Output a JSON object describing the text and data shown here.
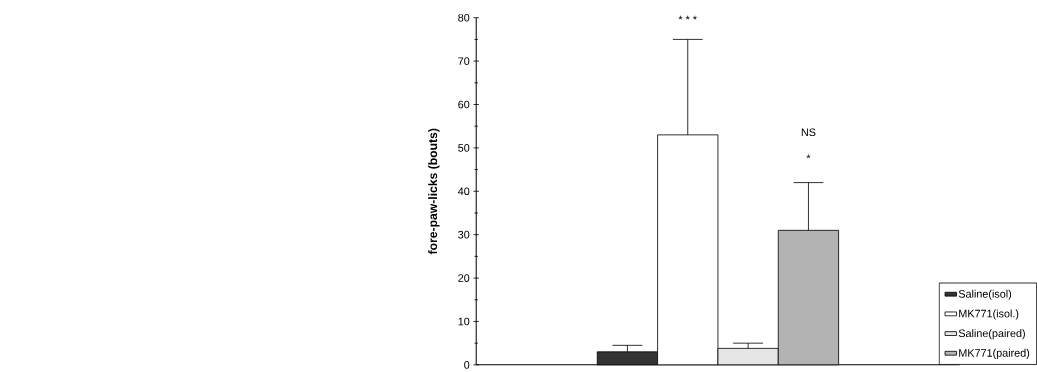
{
  "chart_data": {
    "type": "bar",
    "categories": [
      null
    ],
    "series": [
      {
        "name": "Saline(isol)",
        "color": "#333333",
        "values": [
          3
        ],
        "errors": [
          1.5
        ]
      },
      {
        "name": "MK771(isol.)",
        "color": "#ffffff",
        "values": [
          53
        ],
        "errors": [
          22
        ]
      },
      {
        "name": "Saline(paired)",
        "color": "#e6e6e6",
        "values": [
          3.8
        ],
        "errors": [
          1.2
        ]
      },
      {
        "name": "MK771(paired)",
        "color": "#b3b3b3",
        "values": [
          31
        ],
        "errors": [
          11
        ]
      }
    ],
    "ylabel": "fore-paw-licks (bouts)",
    "ylim": [
      0,
      80
    ],
    "yticks": [
      0,
      {
        "value": 5,
        "label": null
      },
      10,
      {
        "value": 15,
        "label": null
      },
      20,
      {
        "value": 25,
        "label": null
      },
      30,
      {
        "value": 35,
        "label": null
      },
      40,
      {
        "value": 45,
        "label": null
      },
      50,
      {
        "value": 55,
        "label": null
      },
      60,
      {
        "value": 65,
        "label": null
      },
      70,
      {
        "value": 75,
        "label": null
      },
      80
    ],
    "legend": "bottom right",
    "annotations": [
      "* * *",
      "NS",
      "*"
    ]
  }
}
